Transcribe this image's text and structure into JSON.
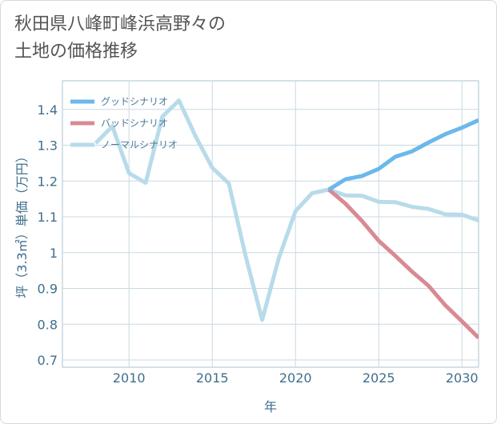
{
  "title_lines": [
    "秋田県八峰町峰浜高野々の",
    "土地の価格推移"
  ],
  "chart_data": {
    "type": "line",
    "xlabel": "年",
    "ylabel": "坪（3.3㎡）単価（万円）",
    "xlim": [
      2006,
      2031
    ],
    "ylim": [
      0.68,
      1.48
    ],
    "x_ticks": [
      2010,
      2015,
      2020,
      2025,
      2030
    ],
    "x_tick_labels": [
      "2010",
      "2015",
      "2020",
      "2025",
      "2030"
    ],
    "y_ticks": [
      0.7,
      0.8,
      0.9,
      1.0,
      1.1,
      1.2,
      1.3,
      1.4
    ],
    "y_tick_labels": [
      "0.7",
      "0.8",
      "0.9",
      "1",
      "1.1",
      "1.2",
      "1.3",
      "1.4"
    ],
    "grid": true,
    "legend_position": "top-left",
    "series": [
      {
        "name": "グッドシナリオ",
        "color": "#6cb8ea",
        "x": [
          2022,
          2023,
          2024,
          2025,
          2026,
          2027,
          2028,
          2029,
          2030,
          2031
        ],
        "y": [
          1.176,
          1.205,
          1.214,
          1.234,
          1.268,
          1.283,
          1.308,
          1.331,
          1.349,
          1.37
        ]
      },
      {
        "name": "バッドシナリオ",
        "color": "#d98a93",
        "x": [
          2022,
          2023,
          2024,
          2025,
          2026,
          2027,
          2028,
          2029,
          2030,
          2031
        ],
        "y": [
          1.176,
          1.137,
          1.088,
          1.033,
          0.991,
          0.947,
          0.907,
          0.853,
          0.808,
          0.762
        ]
      },
      {
        "name": "ノーマルシナリオ",
        "color": "#b8dbea",
        "x": [
          2008,
          2009,
          2010,
          2011,
          2012,
          2013,
          2014,
          2015,
          2016,
          2017,
          2018,
          2019,
          2020,
          2021,
          2022,
          2023,
          2024,
          2025,
          2026,
          2027,
          2028,
          2029,
          2030,
          2031
        ],
        "y": [
          1.306,
          1.353,
          1.222,
          1.195,
          1.38,
          1.425,
          1.325,
          1.237,
          1.193,
          0.991,
          0.812,
          0.985,
          1.116,
          1.166,
          1.176,
          1.16,
          1.159,
          1.142,
          1.141,
          1.128,
          1.122,
          1.107,
          1.106,
          1.09
        ]
      }
    ]
  }
}
